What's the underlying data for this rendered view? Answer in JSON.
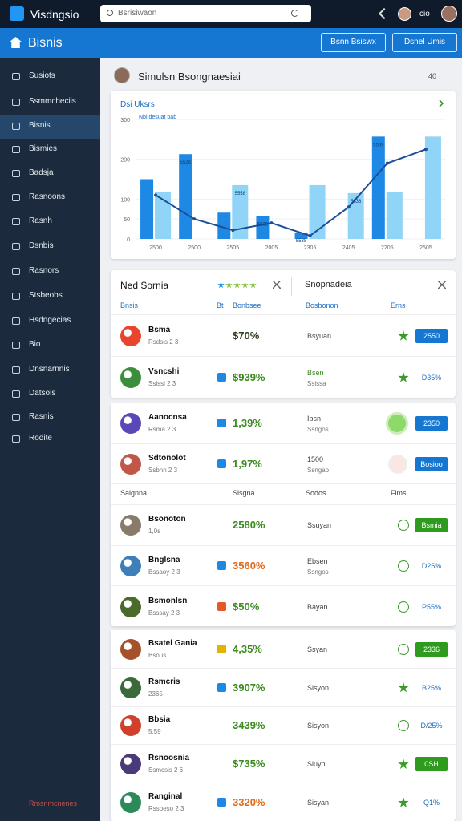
{
  "topbar": {
    "app_name": "Visdngsio",
    "search": "Bsrisiwaon",
    "user": "cio"
  },
  "header": {
    "title": "Bisnis",
    "buttons": [
      "Bsnn Bsiswx",
      "Dsnel Umis"
    ]
  },
  "sidebar": {
    "items": [
      "Susiots",
      "Ssmmcheciis",
      "Bisnis",
      "Bismies",
      "Badsja",
      "Rasnoons",
      "Rasnh",
      "Dsnbis",
      "Rasnors",
      "Stsbeobs",
      "Hsdngecias",
      "Bio",
      "Dnsnarnnis",
      "Datsois",
      "Rasnis",
      "Rodite"
    ],
    "active": 2,
    "footer": "Rmsnmcnenes"
  },
  "page": {
    "title": "Simulsn Bsongnaesiai",
    "meta": "40"
  },
  "chart_data": {
    "type": "bar",
    "title": "Dsi Uksrs",
    "subtitle": "Nbi desuat pab",
    "categories": [
      "2500",
      "2500",
      "2505",
      "2005",
      "2305",
      "2405",
      "2205",
      "2505"
    ],
    "series": [
      {
        "color": "#1e88e5",
        "values": [
          150,
          213,
          66,
          57,
          16,
          null,
          257,
          null
        ]
      },
      {
        "color": "#90d4f7",
        "values": [
          117,
          null,
          135,
          null,
          135,
          115,
          117,
          257
        ]
      },
      {
        "type": "line",
        "color": "#1c4f96",
        "values": [
          110,
          50,
          22,
          40,
          8,
          80,
          190,
          225
        ]
      }
    ],
    "ylim": [
      0,
      300
    ],
    "yticks": [
      0,
      50,
      100,
      200,
      300
    ],
    "grid": true,
    "annotations": [
      "5528",
      "5558",
      "5598",
      "5538",
      "5538",
      "5559"
    ]
  },
  "panels": [
    {
      "title": "Ned Sornia",
      "side_title": "Snopnadeia",
      "sections": [
        {
          "columns": {
            "name": "Bnsis",
            "badge": "Bt",
            "value": "Bonbsee",
            "status": "Bosbonon",
            "action": "Erns"
          },
          "rows": [
            {
              "name": "Bsma",
              "sub": "Rsdsis 2 3",
              "avatar": "#e8452c",
              "value": "$70%",
              "tone": "dark",
              "status": "Bsyuan",
              "icon": "star",
              "action": "2550",
              "action_style": "blue"
            },
            {
              "name": "Vsncshi",
              "sub": "Ssissi 2 3",
              "avatar": "#3b8f3b",
              "badge": "#1e88e5",
              "value": "$939%",
              "tone": "green",
              "status": "Bsen",
              "status_sub": "Ssissa",
              "status_tone": "green",
              "icon": "star",
              "action": "D35%",
              "action_style": "text"
            }
          ]
        }
      ]
    },
    {
      "sections": [
        {
          "rows": [
            {
              "name": "Aanocnsa",
              "sub": "Rsma 2 3",
              "avatar": "#5a48b8",
              "badge": "#1e88e5",
              "value": "1,39%",
              "tone": "green",
              "status": "Ibsn",
              "status_sub": "Ssngos",
              "icon": "circle-green",
              "action": "2350",
              "action_style": "blue"
            },
            {
              "name": "Sdtonolot",
              "sub": "Ssbnn 2 3",
              "avatar": "#c0584a",
              "badge": "#1e88e5",
              "value": "1,97%",
              "tone": "green",
              "status": "1500",
              "status_sub": "Ssngao",
              "icon": "circle-red",
              "action": "Bosioo",
              "action_style": "blue"
            }
          ]
        },
        {
          "columns": {
            "name": "Saignna",
            "value": "Sisgna",
            "status": "Sodos",
            "action": "Fims"
          },
          "rows": [
            {
              "name": "Bsonoton",
              "sub": "1,0s",
              "avatar": "#8a7a6a",
              "value": "2580%",
              "tone": "green",
              "status": "Ssuyan",
              "icon": "check",
              "action": "Bsmia",
              "action_style": "green"
            },
            {
              "name": "Bnglsna",
              "sub": "Bssaoy 2 3",
              "avatar": "#3d7fb8",
              "badge": "#1e88e5",
              "value": "3560%",
              "tone": "orange",
              "status": "Ebsen",
              "status_sub": "Ssngos",
              "icon": "check",
              "action": "D25%",
              "action_style": "text"
            },
            {
              "name": "Bsmonlsn",
              "sub": "Bsssay 2 3",
              "avatar": "#4a6b2a",
              "badge": "#e05a2a",
              "value": "$50%",
              "tone": "green",
              "status": "Bayan",
              "icon": "check",
              "action": "P55%",
              "action_style": "text"
            }
          ]
        }
      ]
    },
    {
      "sections": [
        {
          "rows": [
            {
              "name": "Bsatel Gania",
              "sub": "Bsous",
              "avatar": "#a5522a",
              "badge": "#e0b400",
              "value": "4,35%",
              "tone": "green",
              "status": "Ssyan",
              "icon": "check",
              "action": "2336",
              "action_style": "green"
            },
            {
              "name": "Rsmcris",
              "sub": "2365",
              "avatar": "#3a6a3a",
              "badge": "#1e88e5",
              "value": "3907%",
              "tone": "green",
              "status": "Sisyon",
              "icon": "star",
              "action": "B25%",
              "action_style": "text"
            },
            {
              "name": "Bbsia",
              "sub": "5,59",
              "avatar": "#d0402a",
              "value": "3439%",
              "tone": "green",
              "status": "Sisyon",
              "icon": "check",
              "action": "D/25%",
              "action_style": "text"
            },
            {
              "name": "Rsnoosnia",
              "sub": "Ssmcsis 2 6",
              "avatar": "#4a3a7a",
              "value": "$735%",
              "tone": "green",
              "status": "Siuyn",
              "icon": "star",
              "action": "0SH",
              "action_style": "green"
            },
            {
              "name": "Ranginal",
              "sub": "Rssoeso 2 3",
              "avatar": "#2a8a5a",
              "badge": "#1e88e5",
              "value": "3320%",
              "tone": "orange",
              "status": "Sisyan",
              "icon": "star",
              "action": "Q1%",
              "action_style": "text"
            }
          ]
        }
      ]
    }
  ]
}
